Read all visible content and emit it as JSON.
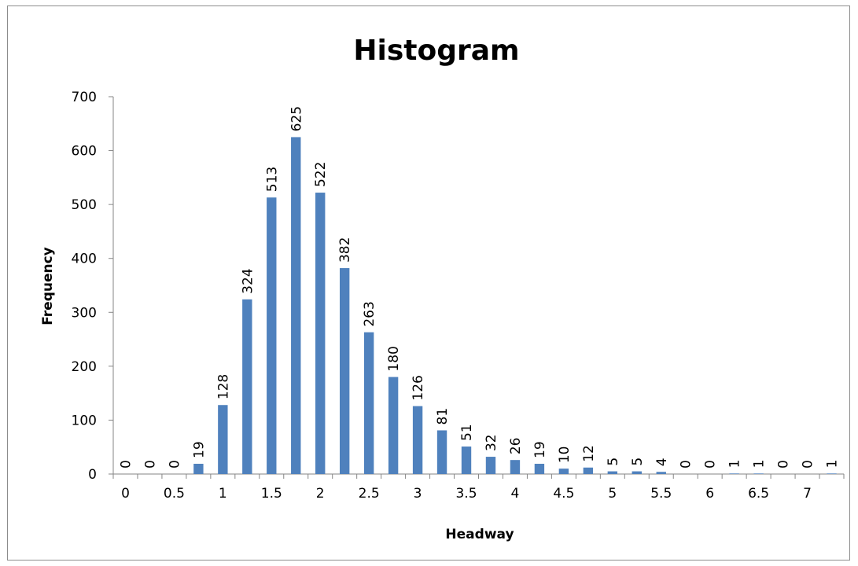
{
  "chart_data": {
    "type": "bar",
    "title": "Histogram",
    "xlabel": "Headway",
    "ylabel": "Frequency",
    "ylim": [
      0,
      700
    ],
    "yticks": [
      0,
      100,
      200,
      300,
      400,
      500,
      600,
      700
    ],
    "x_tick_labels": [
      "0",
      "0.5",
      "1",
      "1.5",
      "2",
      "2.5",
      "3",
      "3.5",
      "4",
      "4.5",
      "5",
      "5.5",
      "6",
      "6.5",
      "7"
    ],
    "bins": [
      0,
      0.25,
      0.5,
      0.75,
      1,
      1.25,
      1.5,
      1.75,
      2,
      2.25,
      2.5,
      2.75,
      3,
      3.25,
      3.5,
      3.75,
      4,
      4.25,
      4.5,
      4.75,
      5,
      5.25,
      5.5,
      5.75,
      6,
      6.25,
      6.5,
      6.75,
      7,
      7.25
    ],
    "values": [
      0,
      0,
      0,
      19,
      128,
      324,
      513,
      625,
      522,
      382,
      263,
      180,
      126,
      81,
      51,
      32,
      26,
      19,
      10,
      12,
      5,
      5,
      4,
      0,
      0,
      1,
      1,
      0,
      0,
      1
    ],
    "bar_color": "#4f81bd",
    "grid": false,
    "legend": false,
    "data_labels": true
  }
}
